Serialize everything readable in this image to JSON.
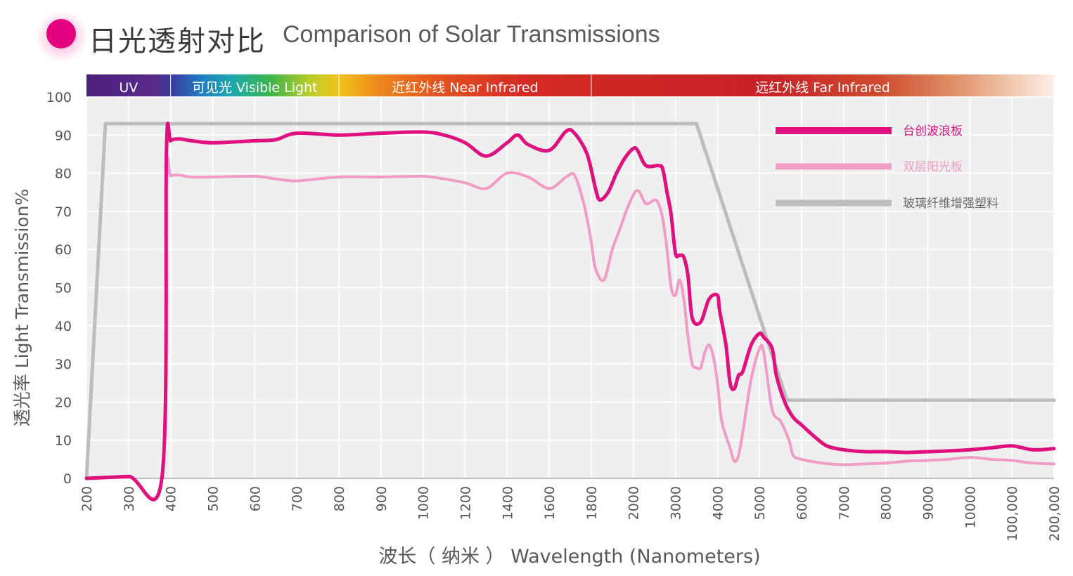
{
  "title": {
    "cn": "日光透射对比",
    "en": "Comparison of Solar Transmissions"
  },
  "colors": {
    "primary": "#e0107f",
    "secondary": "#f09cc6",
    "reference": "#bdbdbd",
    "title_dot": "#e3007f"
  },
  "chart_data": {
    "type": "line",
    "ylabel": "透光率 Light Transmission%",
    "xlabel": "波长（ 纳米 ） Wavelength (Nanometers)",
    "ylim": [
      0,
      100
    ],
    "yticks": [
      "0",
      "10",
      "20",
      "30",
      "40",
      "50",
      "60",
      "70",
      "80",
      "90",
      "100"
    ],
    "xticks": [
      "200",
      "300",
      "400",
      "500",
      "600",
      "700",
      "800",
      "900",
      "1000",
      "1200",
      "1400",
      "1600",
      "1800",
      "2000",
      "3000",
      "4000",
      "5000",
      "6000",
      "7000",
      "8000",
      "9000",
      "10000",
      "100,000",
      "200,000"
    ],
    "grid": true,
    "legend_position": "top-right",
    "spectrum_bands": [
      {
        "label": "UV",
        "from": 0,
        "to": 2
      },
      {
        "label": "可见光 Visible Light",
        "from": 2,
        "to": 6
      },
      {
        "label": "近红外线 Near Infrared",
        "from": 6,
        "to": 12
      },
      {
        "label": "远红外线 Far Infrared",
        "from": 12,
        "to": 23
      }
    ],
    "series": [
      {
        "name": "台创波浪板",
        "color": "#e0107f",
        "points": [
          [
            0,
            0
          ],
          [
            1,
            0.5
          ],
          [
            1.8,
            0.8
          ],
          [
            1.9,
            86
          ],
          [
            2,
            88.5
          ],
          [
            2.2,
            89
          ],
          [
            2.5,
            88.5
          ],
          [
            3,
            88
          ],
          [
            4,
            88.5
          ],
          [
            4.5,
            88.8
          ],
          [
            5,
            90.5
          ],
          [
            6,
            90
          ],
          [
            7,
            90.5
          ],
          [
            8,
            90.8
          ],
          [
            8.5,
            90
          ],
          [
            9,
            88
          ],
          [
            9.5,
            84.5
          ],
          [
            10,
            88
          ],
          [
            10.25,
            90
          ],
          [
            10.5,
            87.5
          ],
          [
            11,
            86
          ],
          [
            11.4,
            91
          ],
          [
            11.6,
            90.5
          ],
          [
            11.9,
            85
          ],
          [
            12.1,
            76
          ],
          [
            12.2,
            73
          ],
          [
            12.4,
            75
          ],
          [
            12.6,
            80
          ],
          [
            12.8,
            84
          ],
          [
            13,
            86.5
          ],
          [
            13.1,
            86
          ],
          [
            13.3,
            82
          ],
          [
            13.6,
            82
          ],
          [
            13.7,
            81
          ],
          [
            13.8,
            75
          ],
          [
            13.9,
            69
          ],
          [
            14,
            59
          ],
          [
            14.1,
            58.5
          ],
          [
            14.2,
            58
          ],
          [
            14.3,
            53
          ],
          [
            14.4,
            42
          ],
          [
            14.6,
            41
          ],
          [
            14.8,
            47
          ],
          [
            15,
            48
          ],
          [
            15.05,
            44
          ],
          [
            15.2,
            35
          ],
          [
            15.3,
            25
          ],
          [
            15.4,
            23.5
          ],
          [
            15.5,
            27
          ],
          [
            15.6,
            28
          ],
          [
            15.8,
            35
          ],
          [
            16,
            38
          ],
          [
            16.1,
            37
          ],
          [
            16.3,
            34
          ],
          [
            16.4,
            27
          ],
          [
            16.6,
            20
          ],
          [
            16.8,
            16
          ],
          [
            17,
            14
          ],
          [
            17.3,
            11
          ],
          [
            17.6,
            8.5
          ],
          [
            18,
            7.5
          ],
          [
            18.5,
            7
          ],
          [
            19,
            7
          ],
          [
            19.5,
            6.8
          ],
          [
            20,
            7
          ],
          [
            20.5,
            7.2
          ],
          [
            21,
            7.5
          ],
          [
            21.5,
            8
          ],
          [
            22,
            8.5
          ],
          [
            22.5,
            7.5
          ],
          [
            23,
            7.8
          ]
        ]
      },
      {
        "name": "双层阳光板",
        "color": "#f09cc6",
        "points": [
          [
            0,
            0
          ],
          [
            1,
            0.3
          ],
          [
            1.8,
            0.5
          ],
          [
            1.9,
            78
          ],
          [
            2,
            79.3
          ],
          [
            2.2,
            79.5
          ],
          [
            2.5,
            79
          ],
          [
            3,
            79
          ],
          [
            4,
            79.2
          ],
          [
            4.5,
            78.5
          ],
          [
            5,
            78
          ],
          [
            6,
            79
          ],
          [
            7,
            79
          ],
          [
            8,
            79.2
          ],
          [
            8.5,
            78.5
          ],
          [
            9,
            77.5
          ],
          [
            9.5,
            76
          ],
          [
            10,
            80
          ],
          [
            10.5,
            79
          ],
          [
            11,
            76
          ],
          [
            11.4,
            79
          ],
          [
            11.6,
            79.5
          ],
          [
            11.8,
            73
          ],
          [
            11.9,
            68
          ],
          [
            12,
            62
          ],
          [
            12.1,
            55
          ],
          [
            12.3,
            52
          ],
          [
            12.5,
            60
          ],
          [
            12.7,
            66
          ],
          [
            12.9,
            72
          ],
          [
            13.1,
            75.5
          ],
          [
            13.3,
            72
          ],
          [
            13.5,
            73
          ],
          [
            13.6,
            72
          ],
          [
            13.7,
            68
          ],
          [
            13.8,
            60
          ],
          [
            13.9,
            50
          ],
          [
            14,
            48
          ],
          [
            14.1,
            52
          ],
          [
            14.2,
            47
          ],
          [
            14.3,
            37
          ],
          [
            14.4,
            30
          ],
          [
            14.5,
            29
          ],
          [
            14.6,
            29
          ],
          [
            14.7,
            33
          ],
          [
            14.8,
            35
          ],
          [
            14.9,
            32
          ],
          [
            15,
            25
          ],
          [
            15.1,
            15
          ],
          [
            15.3,
            8
          ],
          [
            15.4,
            4.5
          ],
          [
            15.5,
            6
          ],
          [
            15.6,
            12
          ],
          [
            15.8,
            26
          ],
          [
            16,
            34
          ],
          [
            16.1,
            33
          ],
          [
            16.3,
            18
          ],
          [
            16.5,
            15
          ],
          [
            16.7,
            10
          ],
          [
            16.8,
            6
          ],
          [
            17,
            5
          ],
          [
            17.5,
            4
          ],
          [
            18,
            3.6
          ],
          [
            18.5,
            3.8
          ],
          [
            19,
            4
          ],
          [
            19.5,
            4.5
          ],
          [
            20,
            4.7
          ],
          [
            20.5,
            5
          ],
          [
            21,
            5.5
          ],
          [
            21.5,
            5
          ],
          [
            22,
            4.7
          ],
          [
            22.5,
            4
          ],
          [
            23,
            3.8
          ]
        ]
      },
      {
        "name": "玻璃纤维增强塑料",
        "color": "#bdbdbd",
        "points": [
          [
            0,
            0
          ],
          [
            0.45,
            93
          ],
          [
            14.5,
            93
          ],
          [
            16.65,
            20.5
          ],
          [
            23,
            20.5
          ]
        ]
      }
    ]
  }
}
